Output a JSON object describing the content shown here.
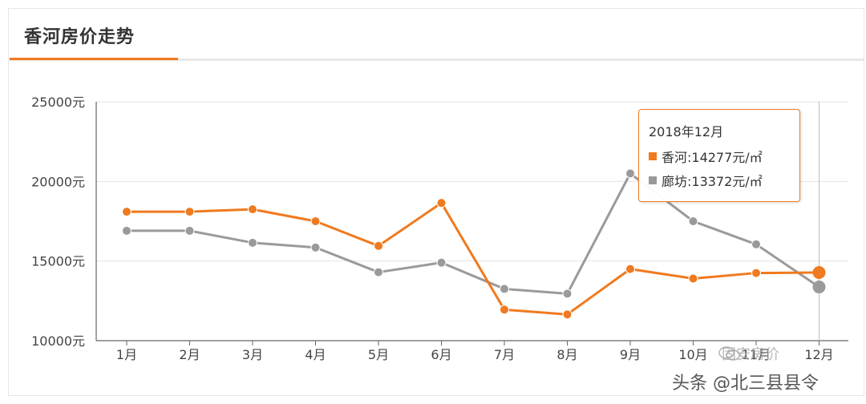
{
  "header": {
    "title": "香河房价走势"
  },
  "colors": {
    "accent": "#f07a1f",
    "xianghe": "#f07a1f",
    "langfang": "#9a9a9a"
  },
  "chart_data": {
    "type": "line",
    "categories": [
      "1月",
      "2月",
      "3月",
      "4月",
      "5月",
      "6月",
      "7月",
      "8月",
      "9月",
      "10月",
      "11月",
      "12月"
    ],
    "series": [
      {
        "name": "香河",
        "color": "#f07a1f",
        "values": [
          18100,
          18100,
          18250,
          17500,
          15950,
          18650,
          11950,
          11650,
          14500,
          13900,
          14250,
          14277
        ]
      },
      {
        "name": "廊坊",
        "color": "#9a9a9a",
        "values": [
          16900,
          16900,
          16150,
          15850,
          14300,
          14900,
          13250,
          12950,
          20500,
          17500,
          16050,
          13372
        ]
      }
    ],
    "yticks": [
      "10000元",
      "15000元",
      "20000元",
      "25000元"
    ],
    "ylim": [
      10000,
      25000
    ],
    "grid": true,
    "highlight_index": 11
  },
  "tooltip": {
    "title": "2018年12月",
    "rows": [
      {
        "text": "香河:14277元/㎡",
        "color": "#f07a1f"
      },
      {
        "text": "廊坊:13372元/㎡",
        "color": "#9a9a9a"
      }
    ]
  },
  "watermark": {
    "text": "头条 @北三县县令",
    "sub": "固安房价"
  }
}
